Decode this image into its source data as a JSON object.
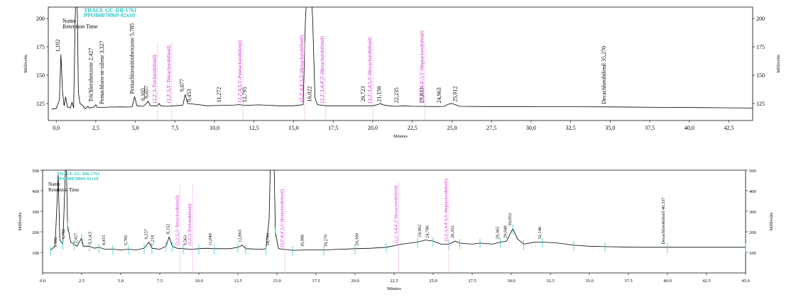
{
  "chart_data": [
    {
      "type": "line",
      "header": [
        "TRACE GC-DB-1761",
        "PPOB0070869-02x10"
      ],
      "legend_labels": [
        "Name",
        "Retention Time"
      ],
      "ylabel_left": "Millivolts",
      "ylabel_right": "Millivolts",
      "xlabel": "Minutes",
      "xlim": [
        -0.5,
        44
      ],
      "ylim": [
        110,
        210
      ],
      "x_ticks": [
        "0,0",
        "2,5",
        "5,0",
        "7,5",
        "10,0",
        "12,5",
        "15,0",
        "17,5",
        "20,0",
        "22,5",
        "25,0",
        "27,5",
        "30,0",
        "32,5",
        "35,0",
        "37,5",
        "40,0",
        "42,5"
      ],
      "y_ticks": [
        "125",
        "150",
        "175",
        "200"
      ],
      "series": [
        {
          "values": [
            [
              -0.3,
              120
            ],
            [
              0,
              120.5
            ],
            [
              0.2,
              128
            ],
            [
              0.3,
              168
            ],
            [
              0.4,
              135
            ],
            [
              0.5,
              123
            ],
            [
              0.6,
              131
            ],
            [
              0.7,
              122
            ],
            [
              0.9,
              121
            ],
            [
              1.0,
              126
            ],
            [
              1.1,
              121
            ],
            [
              1.2,
              200
            ],
            [
              1.27,
              230
            ],
            [
              1.33,
              210
            ],
            [
              1.4,
              135
            ],
            [
              1.5,
              125
            ],
            [
              1.7,
              123
            ],
            [
              1.8,
              120.5
            ],
            [
              1.9,
              121
            ],
            [
              2.0,
              122.5
            ],
            [
              2.1,
              121
            ],
            [
              2.4,
              122
            ],
            [
              2.5,
              124
            ],
            [
              2.6,
              121.5
            ],
            [
              3.0,
              121.5
            ],
            [
              3.2,
              121.8
            ],
            [
              4.0,
              122
            ],
            [
              4.3,
              122
            ],
            [
              4.5,
              121.8
            ],
            [
              4.8,
              122.2
            ],
            [
              4.95,
              131
            ],
            [
              5.1,
              123
            ],
            [
              5.5,
              122.5
            ],
            [
              5.7,
              125
            ],
            [
              5.8,
              127
            ],
            [
              5.95,
              123
            ],
            [
              6.4,
              123
            ],
            [
              6.5,
              125
            ],
            [
              6.6,
              123
            ],
            [
              7.0,
              122.5
            ],
            [
              7.5,
              123
            ],
            [
              8.0,
              123.5
            ],
            [
              8.15,
              133
            ],
            [
              8.3,
              125
            ],
            [
              9.0,
              124
            ],
            [
              9.5,
              123
            ],
            [
              10.0,
              123.2
            ],
            [
              11.2,
              123.5
            ],
            [
              11.5,
              124
            ],
            [
              12.0,
              123.4
            ],
            [
              12.8,
              123.8
            ],
            [
              14.0,
              123
            ],
            [
              15.0,
              123
            ],
            [
              15.6,
              124
            ],
            [
              15.75,
              200
            ],
            [
              15.9,
              235
            ],
            [
              16.05,
              235
            ],
            [
              16.2,
              200
            ],
            [
              16.35,
              130
            ],
            [
              16.5,
              124
            ],
            [
              17.0,
              123
            ],
            [
              18.0,
              123
            ],
            [
              19.0,
              123
            ],
            [
              20.0,
              123
            ],
            [
              20.3,
              124
            ],
            [
              20.5,
              125
            ],
            [
              20.6,
              124
            ],
            [
              21.0,
              123
            ],
            [
              21.5,
              122.5
            ],
            [
              22.0,
              123
            ],
            [
              22.5,
              122.5
            ],
            [
              23.0,
              122.5
            ],
            [
              24.0,
              122.3
            ],
            [
              24.5,
              122.5
            ],
            [
              24.8,
              124.5
            ],
            [
              25.0,
              125
            ],
            [
              25.2,
              124
            ],
            [
              25.5,
              122.5
            ],
            [
              27.0,
              122.3
            ],
            [
              30.0,
              122.3
            ],
            [
              33.0,
              122.1
            ],
            [
              35.0,
              122
            ],
            [
              38.0,
              121.6
            ],
            [
              41.0,
              121.4
            ],
            [
              44.0,
              121
            ]
          ]
        }
      ],
      "peaks": [
        {
          "label": "1,192",
          "x": 0.3,
          "y": 168,
          "highlight": false
        },
        {
          "label": "Pentachloronitrobenzene 5,785",
          "x": 5.0,
          "y": 131,
          "highlight": false
        },
        {
          "label": "Pentachloro-m-xilene 3,327",
          "x": 3.1,
          "y": 122,
          "highlight": false
        },
        {
          "label": "Trichlorobenzene 2,427",
          "x": 2.4,
          "y": 124,
          "highlight": false
        },
        {
          "label": "6,165",
          "x": 5.7,
          "y": 125,
          "highlight": false
        },
        {
          "label": "6,657",
          "x": 5.9,
          "y": 127,
          "highlight": false
        },
        {
          "label": "9,077",
          "x": 8.15,
          "y": 133,
          "highlight": false
        },
        {
          "label": "9,453",
          "x": 8.6,
          "y": 124,
          "highlight": false
        },
        {
          "label": "11,272",
          "x": 10.5,
          "y": 123.5,
          "highlight": false
        },
        {
          "label": "12,795",
          "x": 12.1,
          "y": 123.5,
          "highlight": false
        },
        {
          "label": "16,022",
          "x": 16.2,
          "y": 124,
          "highlight": false
        },
        {
          "label": "20,723",
          "x": 19.6,
          "y": 124,
          "highlight": false
        },
        {
          "label": "21,150",
          "x": 20.6,
          "y": 124,
          "highlight": false
        },
        {
          "label": "22,235",
          "x": 21.7,
          "y": 123,
          "highlight": false
        },
        {
          "label": "23,813",
          "x": 23.3,
          "y": 123,
          "highlight": false
        },
        {
          "label": "24,963",
          "x": 24.4,
          "y": 123,
          "highlight": false
        },
        {
          "label": "25,912",
          "x": 25.4,
          "y": 124,
          "highlight": false
        },
        {
          "label": "Decachlorobifenil 35,270",
          "x": 34.8,
          "y": 122,
          "highlight": false
        },
        {
          "label": "(2,2',5,5'-Tetraclorobifenil)",
          "x": 7.3,
          "y": 123,
          "highlight": true
        },
        {
          "label": "(2,2',5-Triclorobifenil)",
          "x": 6.4,
          "y": 123,
          "highlight": true
        },
        {
          "label": "(2,2',4,5,5'-Pentaclorobifenil)",
          "x": 11.8,
          "y": 123.5,
          "highlight": true
        },
        {
          "label": "(2,2',3,4,4',5'-Hexaclorobifenil)",
          "x": 17.0,
          "y": 123,
          "highlight": true
        },
        {
          "label": "(2,2',4,4',5,5'-Hexaclorobifenil)",
          "x": 15.7,
          "y": 124,
          "highlight": true
        },
        {
          "label": "(2,2',3,4,4',5,5'-Heptaclorobifenil)",
          "x": 23.3,
          "y": 123,
          "highlight": true
        },
        {
          "label": "(2,2',3,4,5,5'-Hexaclorobifenil)",
          "x": 20.0,
          "y": 123,
          "highlight": true
        }
      ]
    },
    {
      "type": "line",
      "header": [
        "TRACE GC-DB-1761",
        "PPOB0070869-02x10"
      ],
      "legend_labels": [
        "Name",
        "Retention Time"
      ],
      "ylabel_left": "Millivolts",
      "ylabel_right": "Millivolts",
      "xlabel": "Minutes",
      "xlim": [
        0,
        45
      ],
      "ylim": [
        0,
        500
      ],
      "x_ticks": [
        "0.0",
        "2.5",
        "5.0",
        "7.5",
        "10.0",
        "12.5",
        "15.0",
        "17.5",
        "20.0",
        "22.5",
        "25.0",
        "27.5",
        "30.0",
        "32.5",
        "35.0",
        "37.5",
        "40.0",
        "42.5",
        "45.0"
      ],
      "y_ticks": [
        "100",
        "200",
        "300",
        "400",
        "500"
      ],
      "series": [
        {
          "values": [
            [
              0.5,
              110
            ],
            [
              0.8,
              130
            ],
            [
              1.0,
              480
            ],
            [
              1.1,
              160
            ],
            [
              1.3,
              140
            ],
            [
              1.5,
              600
            ],
            [
              1.6,
              230
            ],
            [
              1.8,
              150
            ],
            [
              2.0,
              140
            ],
            [
              2.2,
              130
            ],
            [
              2.5,
              170
            ],
            [
              2.6,
              130
            ],
            [
              3.0,
              130
            ],
            [
              3.3,
              120
            ],
            [
              3.6,
              125
            ],
            [
              4.0,
              115
            ],
            [
              4.5,
              115
            ],
            [
              5.0,
              112
            ],
            [
              5.5,
              115
            ],
            [
              6.0,
              112
            ],
            [
              6.5,
              120
            ],
            [
              6.8,
              150
            ],
            [
              7.0,
              120
            ],
            [
              7.5,
              115
            ],
            [
              7.9,
              130
            ],
            [
              8.1,
              175
            ],
            [
              8.3,
              130
            ],
            [
              8.6,
              120
            ],
            [
              9.0,
              118
            ],
            [
              9.5,
              115
            ],
            [
              10.0,
              118
            ],
            [
              10.5,
              120
            ],
            [
              11.0,
              118
            ],
            [
              12.0,
              118
            ],
            [
              12.5,
              125
            ],
            [
              12.8,
              135
            ],
            [
              13.0,
              118
            ],
            [
              14.0,
              115
            ],
            [
              14.3,
              118
            ],
            [
              14.5,
              260
            ],
            [
              14.6,
              600
            ],
            [
              14.8,
              600
            ],
            [
              14.9,
              200
            ],
            [
              15.1,
              118
            ],
            [
              16.0,
              110
            ],
            [
              17.0,
              112
            ],
            [
              18.0,
              112
            ],
            [
              19.0,
              115
            ],
            [
              20.0,
              118
            ],
            [
              21.0,
              120
            ],
            [
              22.0,
              125
            ],
            [
              23.0,
              140
            ],
            [
              24.0,
              150
            ],
            [
              24.5,
              160
            ],
            [
              25.0,
              155
            ],
            [
              25.5,
              140
            ],
            [
              26.0,
              140
            ],
            [
              26.4,
              155
            ],
            [
              26.7,
              145
            ],
            [
              27.5,
              140
            ],
            [
              28.0,
              145
            ],
            [
              28.8,
              140
            ],
            [
              29.3,
              150
            ],
            [
              29.7,
              155
            ],
            [
              30.1,
              215
            ],
            [
              30.4,
              165
            ],
            [
              30.8,
              140
            ],
            [
              31.5,
              150
            ],
            [
              32.0,
              150
            ],
            [
              33.0,
              145
            ],
            [
              34.0,
              135
            ],
            [
              35.0,
              130
            ],
            [
              36.0,
              128
            ],
            [
              38.0,
              125
            ],
            [
              40.0,
              125
            ],
            [
              42.0,
              125
            ],
            [
              45.0,
              125
            ]
          ]
        }
      ],
      "peaks": [
        {
          "label": "1,182",
          "x": 1.0,
          "y": 110,
          "highlight": false
        },
        {
          "label": "1,782",
          "x": 1.5,
          "y": 150,
          "highlight": false
        },
        {
          "label": "2,427",
          "x": 2.3,
          "y": 130,
          "highlight": false
        },
        {
          "label": "3,3,4,5",
          "x": 3.2,
          "y": 125,
          "highlight": false
        },
        {
          "label": "4,415",
          "x": 4.1,
          "y": 120,
          "highlight": false
        },
        {
          "label": "5,785",
          "x": 5.5,
          "y": 120,
          "highlight": false
        },
        {
          "label": "6,257",
          "x": 6.8,
          "y": 150,
          "highlight": false
        },
        {
          "label": "7,218",
          "x": 7.2,
          "y": 120,
          "highlight": false
        },
        {
          "label": "8,152",
          "x": 8.2,
          "y": 175,
          "highlight": false
        },
        {
          "label": "9,563",
          "x": 9.3,
          "y": 120,
          "highlight": false
        },
        {
          "label": "11,049",
          "x": 10.9,
          "y": 118,
          "highlight": false
        },
        {
          "label": "12,863",
          "x": 12.8,
          "y": 135,
          "highlight": false
        },
        {
          "label": "14,783",
          "x": 14.6,
          "y": 118,
          "highlight": false
        },
        {
          "label": "16,986",
          "x": 16.8,
          "y": 112,
          "highlight": false
        },
        {
          "label": "18,270",
          "x": 18.3,
          "y": 112,
          "highlight": false
        },
        {
          "label": "20,309",
          "x": 20.3,
          "y": 118,
          "highlight": false
        },
        {
          "label": "24,462",
          "x": 24.3,
          "y": 160,
          "highlight": false
        },
        {
          "label": "24,786",
          "x": 24.8,
          "y": 155,
          "highlight": false
        },
        {
          "label": "26,352",
          "x": 26.4,
          "y": 155,
          "highlight": false
        },
        {
          "label": "29,365",
          "x": 29.3,
          "y": 150,
          "highlight": false
        },
        {
          "label": "29,948",
          "x": 29.8,
          "y": 155,
          "highlight": false
        },
        {
          "label": "30,053",
          "x": 30.1,
          "y": 215,
          "highlight": false
        },
        {
          "label": "32,146",
          "x": 32.0,
          "y": 150,
          "highlight": false
        },
        {
          "label": "Decachlorobifenil 40,337",
          "x": 39.9,
          "y": 125,
          "highlight": false
        },
        {
          "label": "(2,2',5-Triclorobifenil)",
          "x": 9.6,
          "y": 120,
          "highlight": true
        },
        {
          "label": "(2,2',5,5'-Tetraclorobifenil)",
          "x": 8.8,
          "y": 120,
          "highlight": true
        },
        {
          "label": "(2,2',4,4',5,5'-Hexaclorobifenil)",
          "x": 15.5,
          "y": 112,
          "highlight": true
        },
        {
          "label": "(2,2',3,4,4',5'-Hexaclorobifenil)",
          "x": 22.8,
          "y": 130,
          "highlight": true
        },
        {
          "label": "(2,2',3,4,4',5,5'-Heptaclorobifenil)",
          "x": 26.0,
          "y": 140,
          "highlight": true
        }
      ]
    }
  ]
}
